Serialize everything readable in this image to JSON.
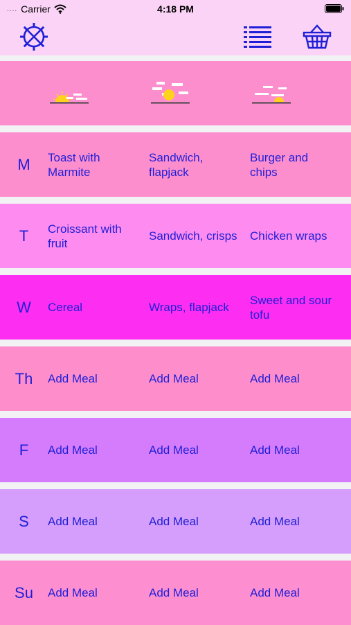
{
  "status": {
    "carrier": "Carrier",
    "signal": "....",
    "time": "4:18 PM"
  },
  "toolbar": {
    "settings_icon": "settings-icon",
    "list_icon": "list-icon",
    "basket_icon": "basket-icon"
  },
  "header": {
    "icons": [
      "sunrise-icon",
      "midday-sun-icon",
      "sunset-icon"
    ]
  },
  "days": [
    {
      "label": "M",
      "color": "#fd8ece",
      "breakfast": "Toast with Marmite",
      "lunch": "Sandwich, flapjack",
      "dinner": "Burger and chips"
    },
    {
      "label": "T",
      "color": "#fe8cf0",
      "breakfast": "Croissant with fruit",
      "lunch": "Sandwich, crisps",
      "dinner": "Chicken wraps"
    },
    {
      "label": "W",
      "color": "#fd2ef2",
      "breakfast": "Cereal",
      "lunch": "Wraps, flapjack",
      "dinner": "Sweet and sour tofu"
    },
    {
      "label": "Th",
      "color": "#fd8ecb",
      "breakfast": "Add Meal",
      "lunch": "Add Meal",
      "dinner": "Add Meal"
    },
    {
      "label": "F",
      "color": "#d57cfc",
      "breakfast": "Add Meal",
      "lunch": "Add Meal",
      "dinner": "Add Meal"
    },
    {
      "label": "S",
      "color": "#d59efc",
      "breakfast": "Add Meal",
      "lunch": "Add Meal",
      "dinner": "Add Meal"
    },
    {
      "label": "Su",
      "color": "#fd8fd0",
      "breakfast": "Add Meal",
      "lunch": "Add Meal",
      "dinner": "Add Meal"
    }
  ],
  "colors": {
    "text": "#1f1fd6",
    "header_bg": "#fd8ece",
    "toolbar_bg": "#fbd3f6",
    "sun": "#ffd21e"
  }
}
